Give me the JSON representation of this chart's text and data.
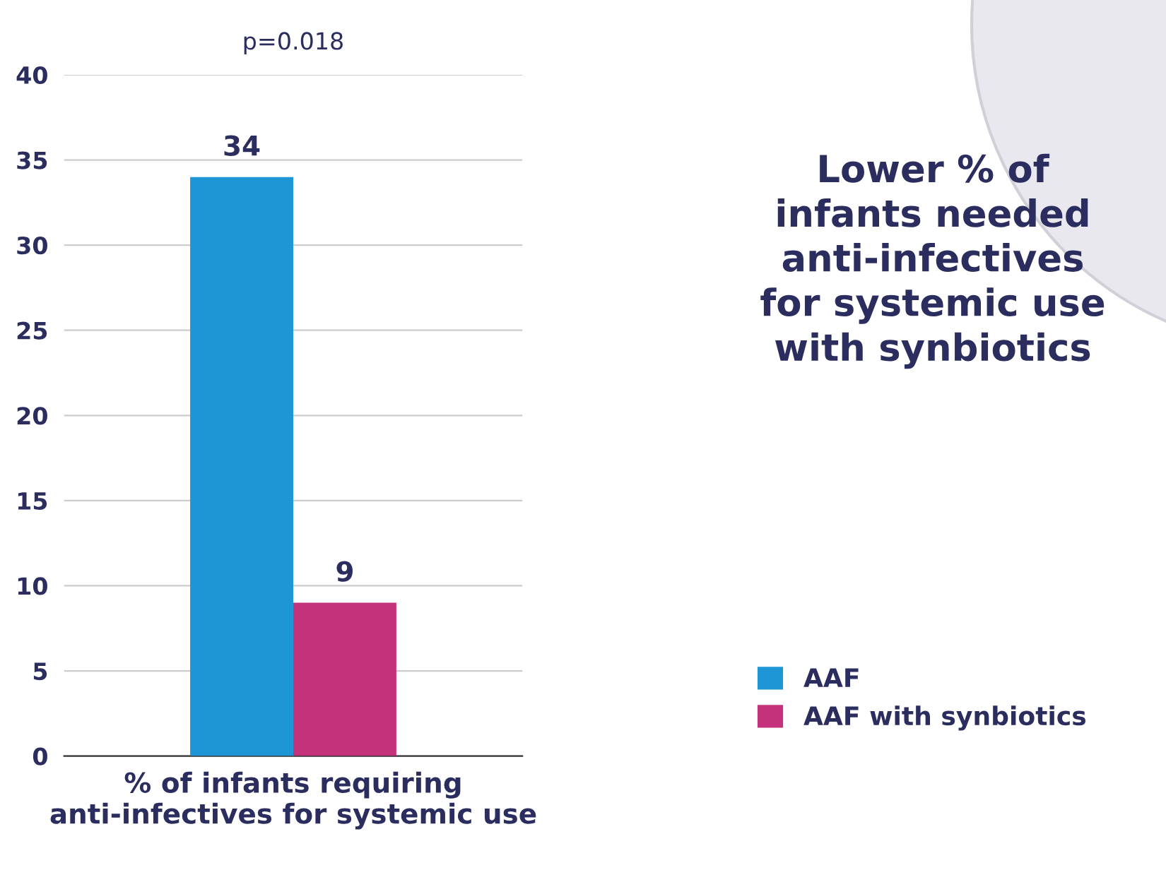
{
  "chart_data": {
    "type": "bar",
    "categories": [
      "% of infants requiring\nanti-infectives for systemic use"
    ],
    "series": [
      {
        "name": "AAF",
        "color": "#1e96d6",
        "values": [
          34
        ]
      },
      {
        "name": "AAF with synbiotics",
        "color": "#c4317d",
        "values": [
          9
        ]
      }
    ],
    "ylim": [
      0,
      40
    ],
    "yticks": [
      0,
      5,
      10,
      15,
      20,
      25,
      30,
      35,
      40
    ],
    "grid": "y",
    "legend": "right",
    "data_labels": true,
    "annotations": [
      "p=0.018",
      "Lower % of\ninfants needed\nanti-infectives\nfor systemic use\nwith synbiotics"
    ]
  }
}
